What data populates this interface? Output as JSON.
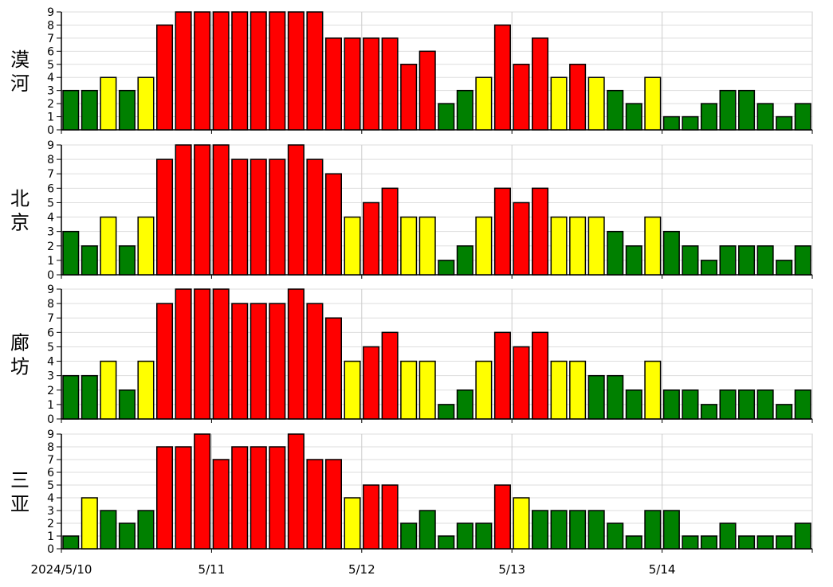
{
  "chart_data": {
    "type": "bar",
    "title": "",
    "xlabel": "",
    "ylabel": "",
    "ylim": [
      0,
      9
    ],
    "y_ticks": [
      "0",
      "1",
      "2",
      "3",
      "4",
      "5",
      "6",
      "7",
      "8",
      "9"
    ],
    "grid": true,
    "bars_per_day": 8,
    "date_ticks": [
      {
        "label": "2024/5/10",
        "day_index": 0
      },
      {
        "label": "5/11",
        "day_index": 1
      },
      {
        "label": "5/12",
        "day_index": 2
      },
      {
        "label": "5/13",
        "day_index": 3
      },
      {
        "label": "5/14",
        "day_index": 4
      }
    ],
    "color_scale": {
      "low": "#008000",
      "mid": "#ffff00",
      "high": "#ff0000",
      "mid_from": 4,
      "high_from": 5
    },
    "panels": [
      {
        "name": "漠河",
        "start_slot": 0,
        "values": [
          3,
          3,
          4,
          3,
          4,
          8,
          9,
          9,
          9,
          9,
          9,
          9,
          9,
          9,
          7,
          7,
          7,
          7,
          5,
          6,
          2,
          3,
          4,
          8,
          5,
          7,
          4,
          5,
          4,
          3,
          2,
          4,
          1,
          1,
          2,
          3,
          3,
          2,
          1,
          2
        ]
      },
      {
        "name": "北京",
        "start_slot": 0,
        "values": [
          3,
          2,
          4,
          2,
          4,
          8,
          9,
          9,
          9,
          8,
          8,
          8,
          9,
          8,
          7,
          4,
          5,
          6,
          4,
          4,
          1,
          2,
          4,
          6,
          5,
          6,
          4,
          4,
          4,
          3,
          2,
          4,
          3,
          2,
          1,
          2,
          2,
          2,
          1,
          2
        ]
      },
      {
        "name": "廊坊",
        "start_slot": 0,
        "values": [
          3,
          3,
          4,
          2,
          4,
          8,
          9,
          9,
          9,
          8,
          8,
          8,
          9,
          8,
          7,
          4,
          5,
          6,
          4,
          4,
          1,
          2,
          4,
          6,
          5,
          6,
          4,
          4,
          3,
          3,
          2,
          4,
          2,
          2,
          1,
          2,
          2,
          2,
          1,
          2
        ]
      },
      {
        "name": "三亚",
        "start_slot": 0,
        "values": [
          1,
          4,
          3,
          2,
          3,
          8,
          8,
          9,
          7,
          8,
          8,
          8,
          9,
          7,
          7,
          4,
          5,
          5,
          2,
          3,
          1,
          2,
          2,
          5,
          4,
          3,
          3,
          3,
          3,
          2,
          1,
          3,
          3,
          1,
          1,
          2,
          1,
          1,
          1,
          2
        ]
      }
    ]
  }
}
